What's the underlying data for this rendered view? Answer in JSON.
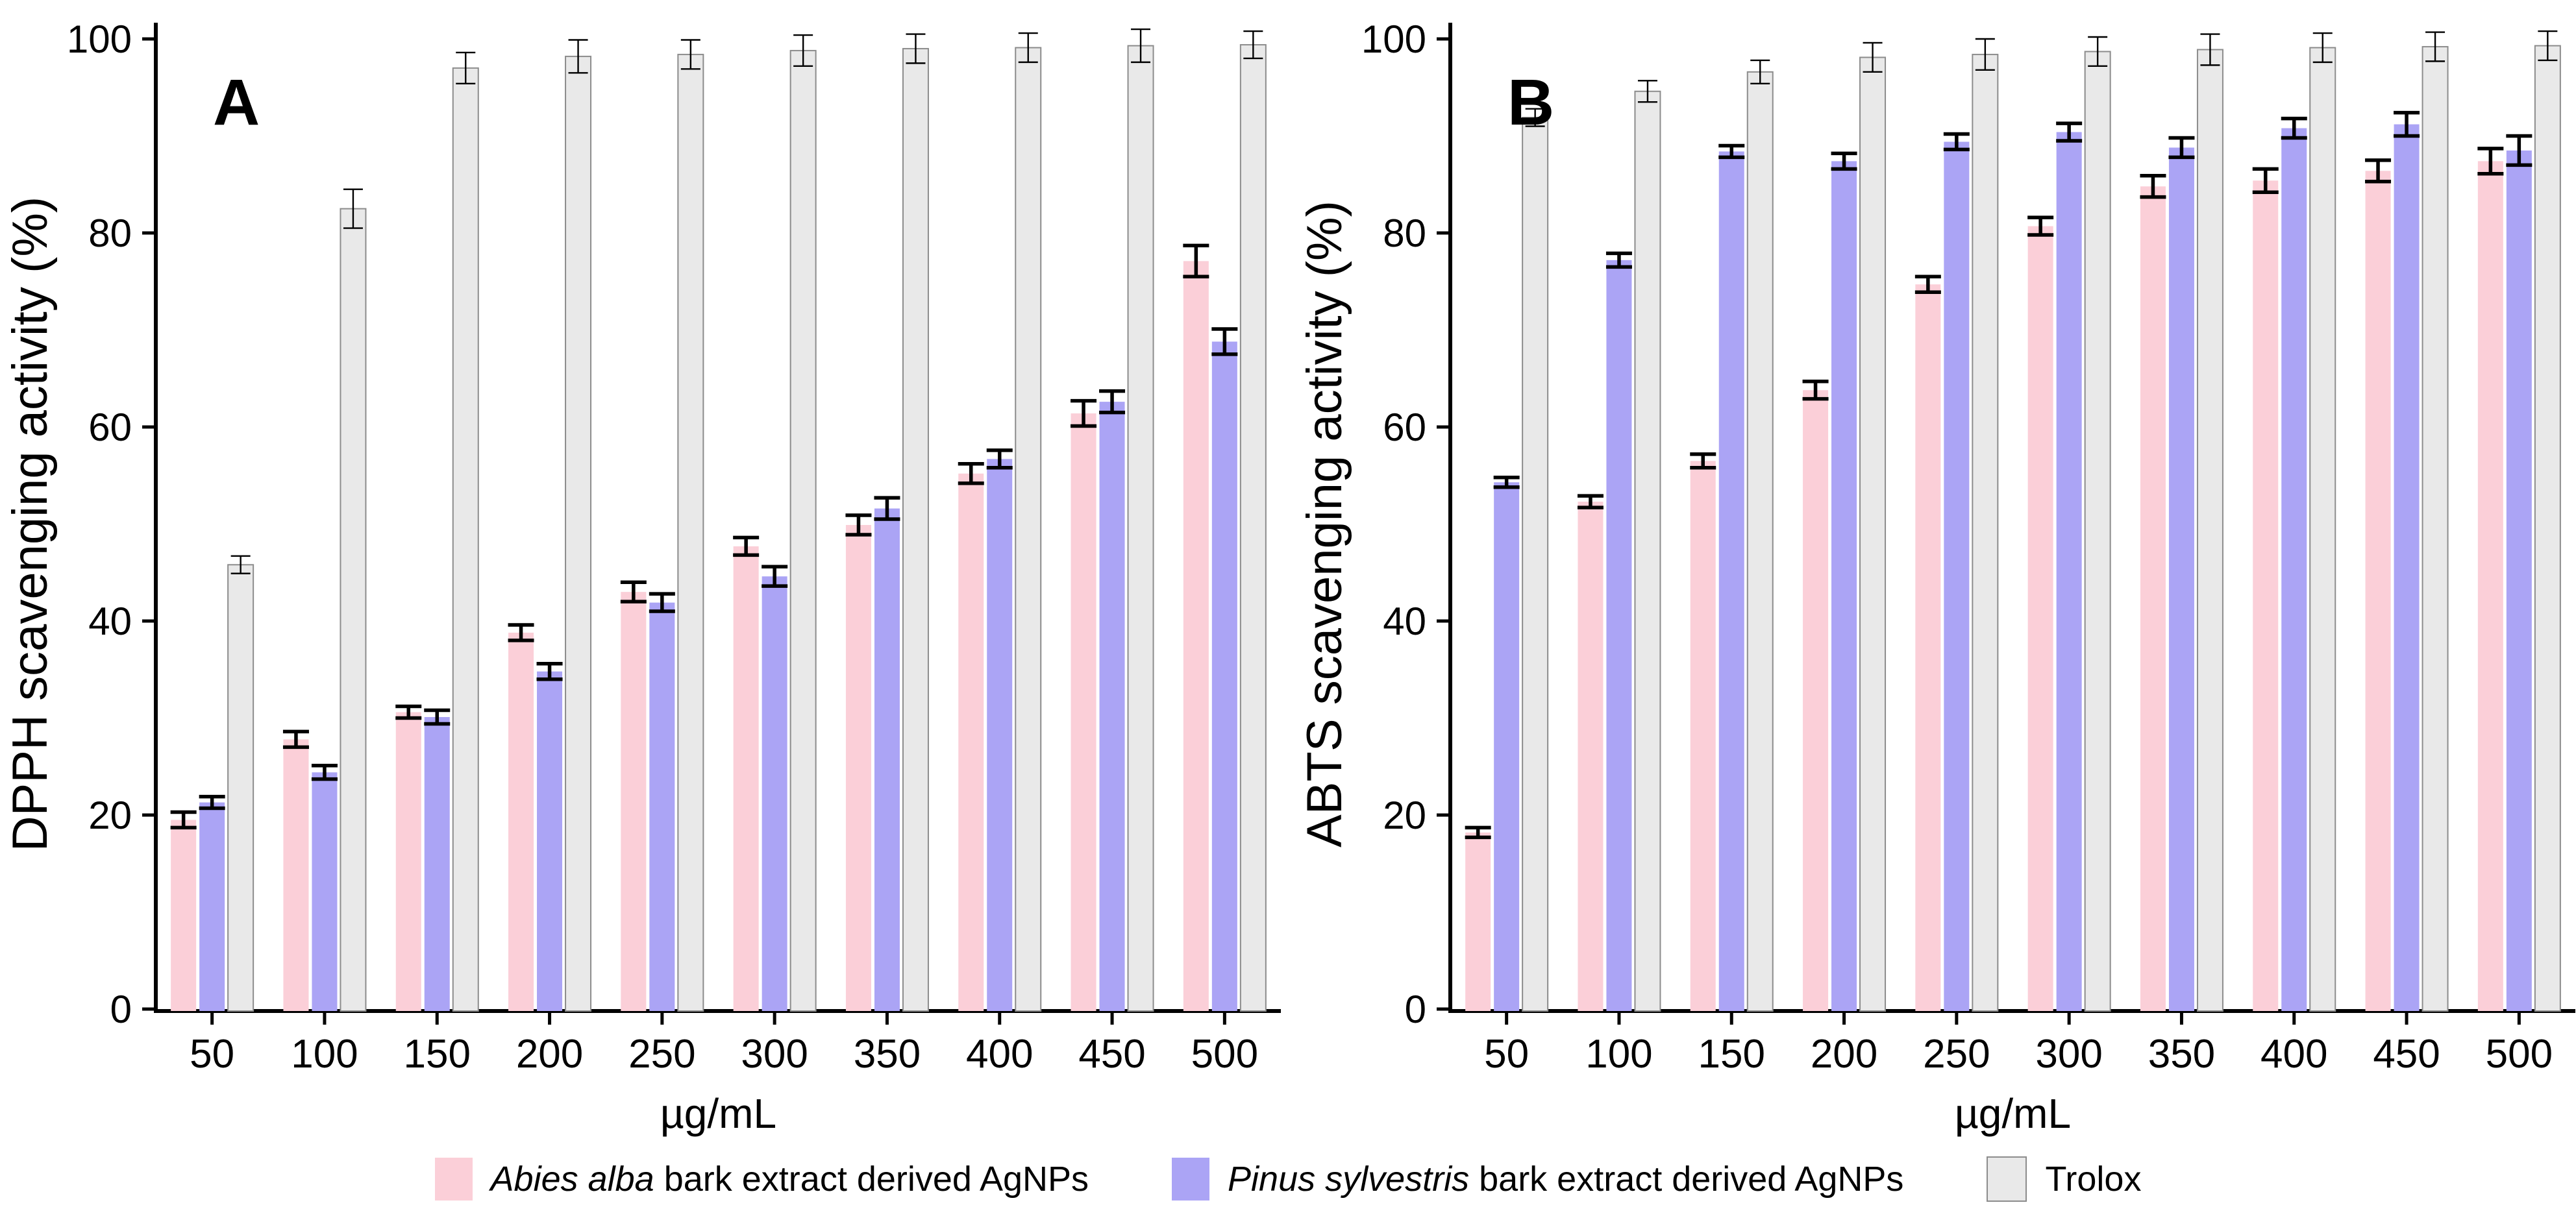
{
  "figure": {
    "background": "#ffffff",
    "axis_color": "#000000",
    "error_bar_color": "#000000"
  },
  "chart_data": [
    {
      "type": "bar",
      "panel_label": "A",
      "title": "",
      "xlabel": "µg/mL",
      "ylabel": "DPPH scavenging activity (%)",
      "ylim": [
        0,
        100
      ],
      "yticks": [
        0,
        20,
        40,
        60,
        80,
        100
      ],
      "grid": false,
      "legend_position": "bottom",
      "categories": [
        "50",
        "100",
        "150",
        "200",
        "250",
        "300",
        "350",
        "400",
        "450",
        "500"
      ],
      "series": [
        {
          "name": "Abies alba bark extract derived AgNPs",
          "color": "#FBCFD8",
          "border": "",
          "err_weight": "thick",
          "values": [
            19.5,
            27.8,
            30.6,
            38.8,
            43.0,
            47.7,
            49.9,
            55.2,
            61.4,
            77.1
          ],
          "errors": [
            0.8,
            0.8,
            0.6,
            0.8,
            1.0,
            0.9,
            1.0,
            1.0,
            1.3,
            1.6
          ]
        },
        {
          "name": "Pinus sylvestris bark extract derived AgNPs",
          "color": "#ABA4F5",
          "border": "",
          "err_weight": "thick",
          "values": [
            21.3,
            24.4,
            30.1,
            34.8,
            41.9,
            44.6,
            51.6,
            56.7,
            62.6,
            68.8
          ],
          "errors": [
            0.6,
            0.7,
            0.7,
            0.8,
            0.9,
            1.0,
            1.1,
            0.9,
            1.1,
            1.3
          ]
        },
        {
          "name": "Trolox",
          "color": "#E9E9E9",
          "border": "#8C8C8C",
          "err_weight": "thin",
          "values": [
            45.8,
            82.5,
            97.0,
            98.2,
            98.4,
            98.8,
            99.0,
            99.1,
            99.3,
            99.4
          ],
          "errors": [
            0.9,
            2.0,
            1.6,
            1.7,
            1.5,
            1.6,
            1.5,
            1.5,
            1.7,
            1.4
          ]
        }
      ]
    },
    {
      "type": "bar",
      "panel_label": "B",
      "title": "",
      "xlabel": "µg/mL",
      "ylabel": "ABTS scavenging activity (%)",
      "ylim": [
        0,
        100
      ],
      "yticks": [
        0,
        20,
        40,
        60,
        80,
        100
      ],
      "grid": false,
      "legend_position": "bottom",
      "categories": [
        "50",
        "100",
        "150",
        "200",
        "250",
        "300",
        "350",
        "400",
        "450",
        "500"
      ],
      "series": [
        {
          "name": "Abies alba bark extract derived AgNPs",
          "color": "#FBCFD8",
          "border": "",
          "err_weight": "thick",
          "values": [
            18.2,
            52.3,
            56.5,
            63.8,
            74.7,
            80.7,
            84.8,
            85.4,
            86.4,
            87.4
          ],
          "errors": [
            0.5,
            0.6,
            0.7,
            0.9,
            0.8,
            0.9,
            1.1,
            1.2,
            1.1,
            1.3
          ]
        },
        {
          "name": "Pinus sylvestris bark extract derived AgNPs",
          "color": "#ABA4F5",
          "border": "",
          "err_weight": "thick",
          "values": [
            54.3,
            77.2,
            88.4,
            87.4,
            89.4,
            90.4,
            88.8,
            90.8,
            91.2,
            88.5
          ],
          "errors": [
            0.5,
            0.7,
            0.6,
            0.8,
            0.8,
            0.9,
            1.0,
            1.0,
            1.2,
            1.5
          ]
        },
        {
          "name": "Trolox",
          "color": "#E9E9E9",
          "border": "#8C8C8C",
          "err_weight": "thin",
          "values": [
            91.9,
            94.6,
            96.6,
            98.1,
            98.4,
            98.7,
            98.9,
            99.1,
            99.2,
            99.3
          ],
          "errors": [
            0.9,
            1.1,
            1.2,
            1.5,
            1.6,
            1.5,
            1.6,
            1.5,
            1.5,
            1.5
          ]
        }
      ]
    }
  ],
  "legend": {
    "items": [
      {
        "label_italic": "Abies alba",
        "label_rest": " bark extract derived AgNPs",
        "color": "#FBCFD8",
        "border": ""
      },
      {
        "label_italic": "Pinus sylvestris",
        "label_rest": " bark extract derived AgNPs",
        "color": "#ABA4F5",
        "border": ""
      },
      {
        "label_italic": "",
        "label_rest": "Trolox",
        "color": "#E9E9E9",
        "border": "#8C8C8C"
      }
    ]
  }
}
